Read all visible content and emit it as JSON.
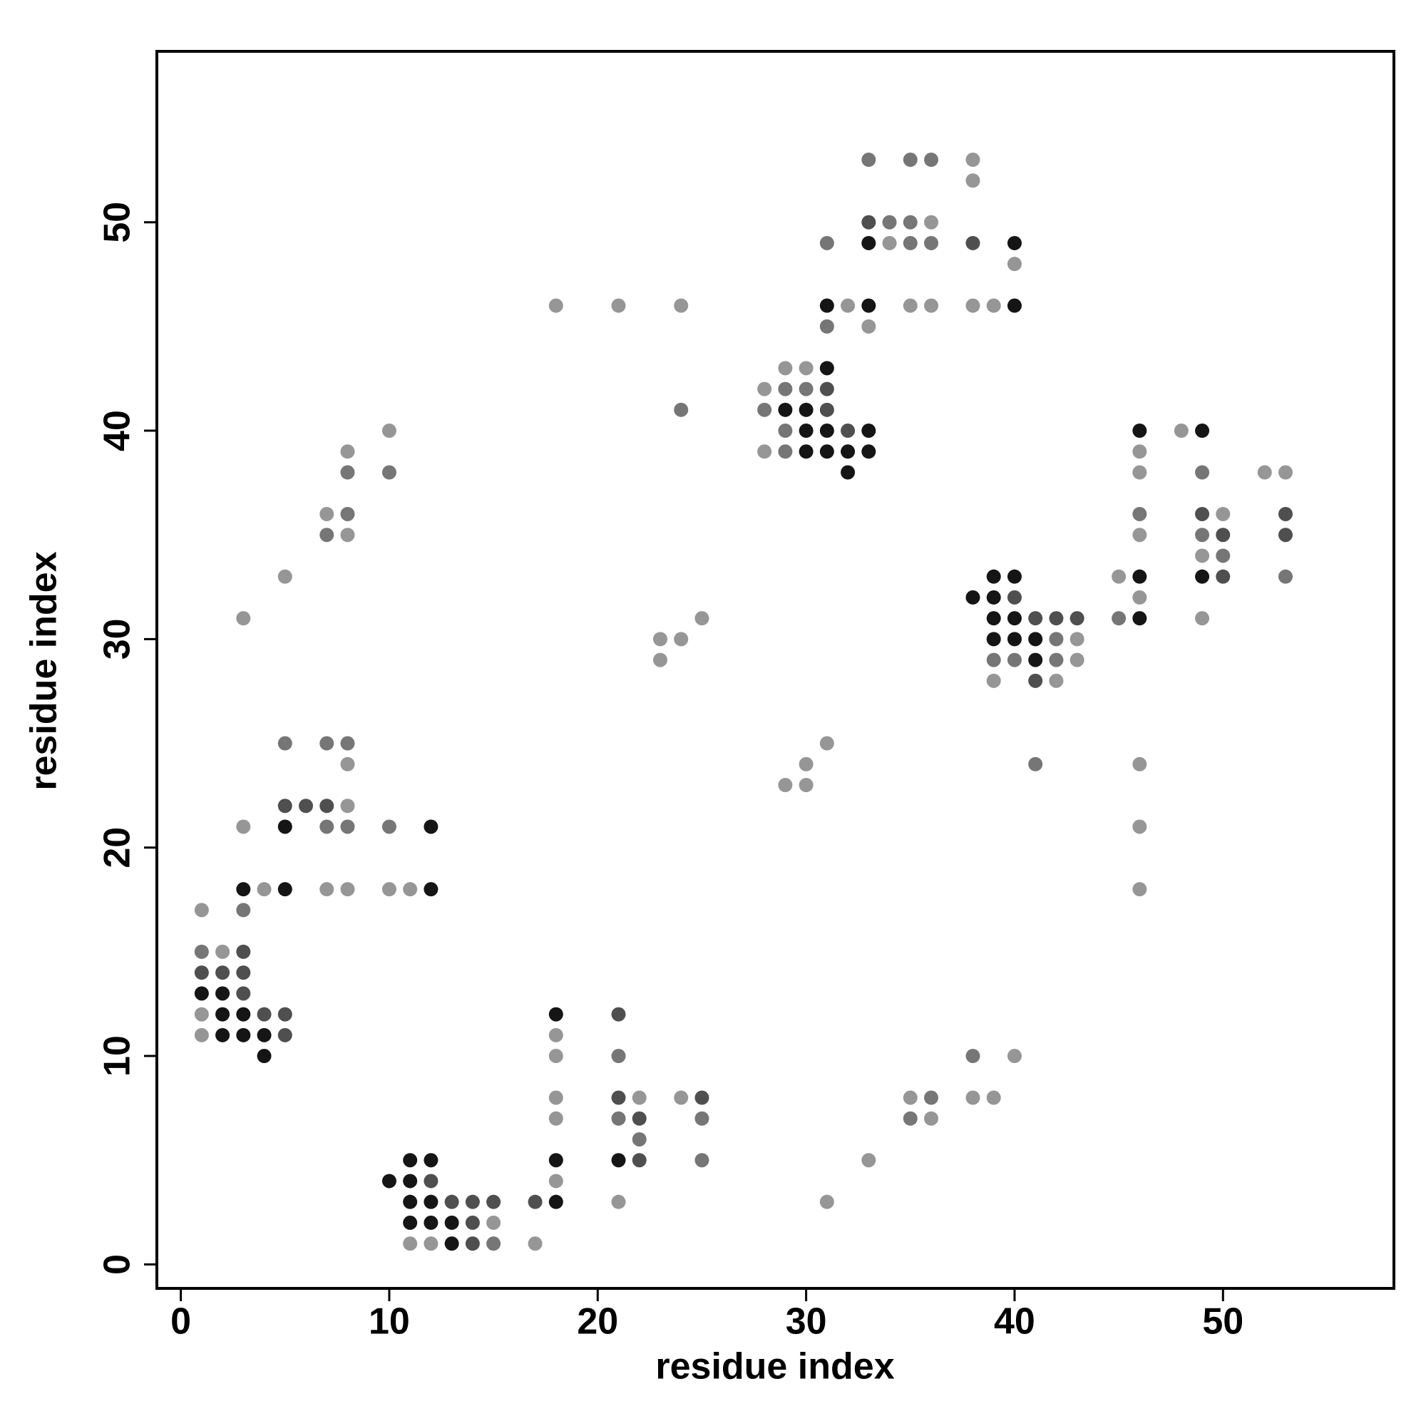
{
  "chart_data": {
    "type": "scatter",
    "x_label": "residue index",
    "y_label": "residue index",
    "xlim": [
      -1.15,
      58.2
    ],
    "ylim": [
      -1.15,
      58.2
    ],
    "xticks": [
      0,
      10,
      20,
      30,
      40,
      50
    ],
    "yticks": [
      0,
      10,
      20,
      30,
      40,
      50
    ],
    "series": [
      {
        "color": "#969696",
        "x": [
          38,
          38,
          36,
          34,
          40,
          18,
          21,
          24,
          32,
          35,
          36,
          38,
          39,
          33,
          29,
          30,
          28,
          10,
          48,
          8,
          28,
          46,
          46,
          52,
          53,
          7,
          50,
          8,
          46,
          49,
          5,
          45,
          46,
          3,
          25,
          49,
          23,
          24,
          43,
          23,
          43,
          39,
          42,
          31,
          8,
          30,
          46,
          29,
          30,
          8,
          3,
          46,
          4,
          7,
          8,
          10,
          11,
          46,
          1,
          2,
          1,
          1,
          18,
          18,
          40,
          18,
          22,
          24,
          35,
          38,
          39,
          18,
          36,
          33,
          18,
          21,
          31,
          15,
          11,
          12,
          17
        ],
        "y": [
          53,
          52,
          50,
          49,
          48,
          46,
          46,
          46,
          46,
          46,
          46,
          46,
          46,
          45,
          43,
          43,
          42,
          40,
          40,
          39,
          39,
          39,
          38,
          38,
          38,
          36,
          36,
          35,
          35,
          34,
          33,
          33,
          32,
          31,
          31,
          31,
          30,
          30,
          30,
          29,
          29,
          28,
          28,
          25,
          24,
          24,
          24,
          23,
          23,
          22,
          21,
          21,
          18,
          18,
          18,
          18,
          18,
          18,
          17,
          15,
          12,
          11,
          11,
          10,
          10,
          8,
          8,
          8,
          8,
          8,
          8,
          7,
          7,
          5,
          4,
          3,
          3,
          2,
          1,
          1,
          1
        ]
      },
      {
        "color": "#767676",
        "x": [
          33,
          35,
          36,
          34,
          35,
          31,
          35,
          36,
          31,
          29,
          30,
          24,
          28,
          29,
          29,
          8,
          10,
          49,
          8,
          46,
          7,
          49,
          50,
          53,
          45,
          42,
          39,
          40,
          42,
          5,
          7,
          8,
          41,
          7,
          8,
          10,
          3,
          1,
          21,
          38,
          36,
          21,
          25,
          35,
          22,
          25,
          15
        ],
        "y": [
          53,
          53,
          53,
          50,
          50,
          49,
          49,
          49,
          45,
          42,
          42,
          41,
          41,
          40,
          39,
          38,
          38,
          38,
          36,
          36,
          35,
          35,
          34,
          33,
          31,
          30,
          29,
          29,
          29,
          25,
          25,
          25,
          24,
          21,
          21,
          21,
          17,
          15,
          10,
          10,
          8,
          7,
          7,
          7,
          6,
          5,
          1
        ]
      },
      {
        "color": "#4f4f4f",
        "x": [
          33,
          38,
          31,
          31,
          32,
          49,
          53,
          50,
          53,
          50,
          40,
          41,
          42,
          43,
          41,
          5,
          6,
          7,
          3,
          1,
          2,
          3,
          3,
          4,
          5,
          21,
          5,
          21,
          25,
          22,
          22,
          12,
          13,
          14,
          15,
          17,
          14,
          14
        ],
        "y": [
          50,
          49,
          42,
          41,
          40,
          36,
          36,
          35,
          35,
          33,
          32,
          31,
          31,
          31,
          28,
          22,
          22,
          22,
          15,
          14,
          14,
          14,
          13,
          12,
          12,
          12,
          11,
          8,
          8,
          7,
          5,
          4,
          3,
          3,
          3,
          3,
          2,
          1
        ]
      },
      {
        "color": "#151515",
        "x": [
          33,
          40,
          31,
          33,
          40,
          31,
          29,
          30,
          30,
          31,
          33,
          46,
          49,
          30,
          31,
          32,
          33,
          32,
          39,
          40,
          46,
          49,
          38,
          39,
          39,
          40,
          46,
          39,
          40,
          41,
          41,
          5,
          12,
          3,
          5,
          12,
          1,
          2,
          2,
          3,
          18,
          2,
          3,
          4,
          4,
          11,
          12,
          18,
          21,
          10,
          11,
          11,
          12,
          18,
          11,
          12,
          13,
          13
        ],
        "y": [
          49,
          49,
          46,
          46,
          46,
          43,
          41,
          41,
          40,
          40,
          40,
          40,
          40,
          39,
          39,
          39,
          39,
          38,
          33,
          33,
          33,
          33,
          32,
          32,
          31,
          31,
          31,
          30,
          30,
          30,
          29,
          21,
          21,
          18,
          18,
          18,
          13,
          13,
          12,
          12,
          12,
          11,
          11,
          11,
          10,
          5,
          5,
          5,
          5,
          4,
          4,
          3,
          3,
          3,
          2,
          2,
          2,
          1
        ]
      }
    ]
  }
}
